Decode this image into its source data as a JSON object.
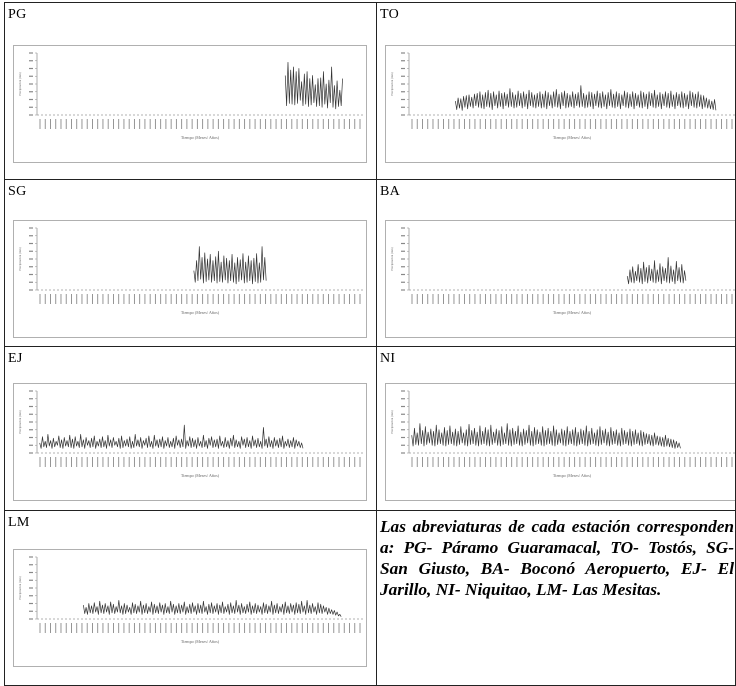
{
  "note": "Las abreviaturas de cada estación corresponden a: PG- Páramo Guaramacal, TO- Tostós, SG- San Giusto, BA- Boconó Aeropuerto, EJ- El Jarillo,  NI- Niquitao, LM- Las Mesitas.",
  "colors": {
    "series": "#333333",
    "border": "#222222",
    "axis": "#9a9a9a"
  },
  "chart_data": [
    {
      "type": "line",
      "title": "PG",
      "xlabel": "Tiempo (Meses/ Años)",
      "ylabel": "Precipitación (mm)",
      "n_points": 240,
      "ylim": [
        0,
        800
      ],
      "start_index": 182,
      "n_active": 43,
      "values": [
        510,
        120,
        680,
        150,
        580,
        140,
        620,
        130,
        560,
        150,
        600,
        190,
        430,
        120,
        530,
        140,
        560,
        110,
        470,
        130,
        510,
        160,
        390,
        110,
        470,
        120,
        480,
        100,
        560,
        140,
        400,
        90,
        450,
        160,
        620,
        100,
        380,
        80,
        440,
        110,
        320,
        120,
        470
      ]
    },
    {
      "type": "line",
      "title": "TO",
      "xlabel": "Tiempo (Meses/ Años)",
      "ylabel": "Precipitación (mm)",
      "n_points": 240,
      "ylim": [
        0,
        800
      ],
      "start_index": 34,
      "n_active": 196,
      "values": [
        180,
        70,
        220,
        90,
        210,
        60,
        240,
        100,
        250,
        80,
        260,
        110,
        230,
        90,
        270,
        120,
        280,
        100,
        300,
        90,
        260,
        80,
        290,
        110,
        320,
        100,
        280,
        70,
        300,
        120,
        260,
        90,
        310,
        110,
        280,
        80,
        290,
        120,
        270,
        100,
        340,
        110,
        290,
        90,
        260,
        100,
        310,
        120,
        280,
        90,
        300,
        110,
        270,
        80,
        320,
        120,
        290,
        100,
        260,
        90,
        280,
        110,
        300,
        90,
        270,
        100,
        310,
        80,
        290,
        120,
        260,
        90,
        300,
        110,
        330,
        100,
        270,
        80,
        290,
        120,
        310,
        90,
        280,
        100,
        260,
        110,
        300,
        90,
        270,
        120,
        290,
        100,
        380,
        110,
        280,
        90,
        260,
        100,
        300,
        110,
        290,
        80,
        270,
        120,
        310,
        100,
        280,
        90,
        300,
        110,
        260,
        80,
        290,
        120,
        330,
        100,
        270,
        90,
        300,
        110,
        280,
        80,
        260,
        120,
        310,
        100,
        290,
        90,
        270,
        110,
        300,
        80,
        280,
        120,
        260,
        100,
        310,
        90,
        290,
        110,
        270,
        80,
        300,
        120,
        280,
        100,
        320,
        90,
        260,
        110,
        290,
        80,
        270,
        120,
        300,
        100,
        280,
        90,
        310,
        110,
        260,
        80,
        290,
        120,
        270,
        100,
        300,
        90,
        280,
        110,
        260,
        80,
        310,
        120,
        290,
        100,
        270,
        90,
        300,
        110,
        260,
        80,
        250,
        100,
        220,
        90,
        200,
        80,
        180,
        70,
        200,
        60
      ]
    },
    {
      "type": "line",
      "title": "SG",
      "xlabel": "Tiempo (Meses/ Años)",
      "ylabel": "Precipitación (mm)",
      "n_points": 240,
      "ylim": [
        0,
        800
      ],
      "start_index": 115,
      "n_active": 54,
      "values": [
        250,
        100,
        380,
        120,
        560,
        140,
        420,
        90,
        480,
        110,
        400,
        130,
        460,
        100,
        380,
        120,
        430,
        90,
        500,
        110,
        360,
        100,
        440,
        130,
        410,
        90,
        380,
        120,
        460,
        100,
        350,
        80,
        420,
        110,
        390,
        130,
        470,
        90,
        360,
        100,
        440,
        120,
        380,
        80,
        410,
        110,
        470,
        90,
        350,
        100,
        560,
        130,
        420,
        120
      ]
    },
    {
      "type": "line",
      "title": "BA",
      "xlabel": "Tiempo (Meses/ Años)",
      "ylabel": "Precipitación (mm)",
      "n_points": 240,
      "ylim": [
        0,
        800
      ],
      "start_index": 160,
      "n_active": 44,
      "values": [
        180,
        80,
        260,
        100,
        300,
        90,
        240,
        120,
        330,
        100,
        280,
        80,
        360,
        110,
        290,
        90,
        320,
        120,
        270,
        100,
        380,
        90,
        260,
        110,
        340,
        80,
        300,
        120,
        280,
        100,
        420,
        90,
        310,
        110,
        260,
        80,
        370,
        120,
        290,
        100,
        330,
        90,
        250,
        120
      ]
    },
    {
      "type": "line",
      "title": "EJ",
      "xlabel": "Tiempo (Meses/ Años)",
      "ylabel": "Precipitación (mm)",
      "n_points": 240,
      "ylim": [
        0,
        800
      ],
      "start_index": 2,
      "n_active": 196,
      "values": [
        130,
        60,
        210,
        80,
        150,
        70,
        240,
        90,
        160,
        60,
        190,
        80,
        150,
        100,
        220,
        70,
        170,
        60,
        200,
        90,
        160,
        80,
        230,
        70,
        180,
        60,
        210,
        90,
        150,
        70,
        240,
        80,
        170,
        60,
        200,
        100,
        160,
        70,
        190,
        80,
        220,
        60,
        150,
        90,
        180,
        70,
        210,
        80,
        160,
        60,
        230,
        90,
        170,
        70,
        200,
        100,
        150,
        80,
        190,
        60,
        220,
        70,
        160,
        90,
        180,
        80,
        210,
        60,
        150,
        70,
        240,
        90,
        170,
        80,
        200,
        60,
        160,
        100,
        190,
        70,
        220,
        80,
        150,
        60,
        230,
        90,
        170,
        70,
        180,
        80,
        210,
        60,
        160,
        90,
        200,
        70,
        150,
        80,
        190,
        60,
        220,
        100,
        170,
        70,
        180,
        80,
        360,
        60,
        160,
        90,
        210,
        70,
        190,
        80,
        170,
        60,
        200,
        90,
        150,
        70,
        230,
        80,
        160,
        60,
        190,
        100,
        210,
        70,
        170,
        80,
        180,
        60,
        220,
        90,
        150,
        70,
        200,
        80,
        160,
        60,
        190,
        90,
        230,
        70,
        170,
        80,
        150,
        60,
        210,
        100,
        180,
        70,
        200,
        80,
        160,
        60,
        220,
        90,
        170,
        70,
        190,
        80,
        150,
        60,
        330,
        90,
        180,
        70,
        210,
        80,
        160,
        60,
        200,
        90,
        170,
        70,
        190,
        80,
        220,
        60,
        150,
        90,
        180,
        70,
        160,
        80,
        200,
        60,
        170,
        90,
        150,
        70,
        130,
        60
      ]
    },
    {
      "type": "line",
      "title": "NI",
      "xlabel": "Tiempo (Meses/ Años)",
      "ylabel": "Precipitación (mm)",
      "n_points": 240,
      "ylim": [
        0,
        800
      ],
      "start_index": 2,
      "n_active": 200,
      "values": [
        230,
        90,
        320,
        110,
        260,
        100,
        380,
        120,
        290,
        90,
        340,
        110,
        270,
        130,
        310,
        100,
        280,
        90,
        360,
        110,
        300,
        120,
        260,
        100,
        330,
        90,
        290,
        110,
        350,
        120,
        270,
        100,
        310,
        90,
        280,
        110,
        340,
        130,
        260,
        100,
        300,
        90,
        370,
        110,
        290,
        120,
        320,
        100,
        270,
        90,
        350,
        110,
        280,
        120,
        330,
        100,
        300,
        90,
        360,
        110,
        270,
        130,
        310,
        100,
        290,
        90,
        340,
        110,
        260,
        120,
        380,
        100,
        300,
        90,
        320,
        110,
        280,
        120,
        350,
        100,
        270,
        90,
        310,
        110,
        290,
        130,
        360,
        100,
        280,
        90,
        330,
        110,
        300,
        120,
        270,
        100,
        340,
        90,
        290,
        110,
        320,
        120,
        280,
        100,
        350,
        90,
        300,
        110,
        260,
        130,
        310,
        100,
        290,
        90,
        340,
        110,
        280,
        120,
        300,
        100,
        330,
        90,
        270,
        110,
        310,
        120,
        290,
        100,
        350,
        90,
        280,
        110,
        320,
        120,
        260,
        100,
        300,
        90,
        340,
        110,
        290,
        130,
        310,
        100,
        270,
        90,
        330,
        110,
        280,
        120,
        300,
        100,
        260,
        90,
        320,
        110,
        290,
        120,
        270,
        100,
        310,
        90,
        280,
        110,
        300,
        120,
        260,
        100,
        290,
        90,
        270,
        110,
        250,
        120,
        240,
        100,
        230,
        90,
        260,
        110,
        220,
        100,
        210,
        90,
        200,
        80,
        230,
        90,
        190,
        80,
        180,
        70,
        170,
        60,
        150,
        70,
        130,
        60
      ]
    },
    {
      "type": "line",
      "title": "LM",
      "xlabel": "Tiempo (Meses/ Años)",
      "ylabel": "Precipitación (mm)",
      "n_points": 240,
      "ylim": [
        0,
        800
      ],
      "start_index": 34,
      "n_active": 184,
      "values": [
        180,
        70,
        150,
        60,
        200,
        80,
        170,
        70,
        210,
        90,
        160,
        60,
        230,
        80,
        180,
        70,
        200,
        90,
        170,
        60,
        220,
        80,
        190,
        70,
        160,
        90,
        240,
        80,
        170,
        60,
        200,
        70,
        180,
        90,
        150,
        60,
        210,
        80,
        190,
        70,
        170,
        90,
        230,
        60,
        180,
        80,
        200,
        70,
        160,
        90,
        220,
        60,
        190,
        80,
        170,
        70,
        210,
        90,
        180,
        60,
        200,
        80,
        160,
        70,
        230,
        90,
        190,
        60,
        170,
        80,
        200,
        70,
        180,
        90,
        220,
        60,
        160,
        80,
        190,
        70,
        210,
        90,
        170,
        60,
        200,
        80,
        180,
        70,
        230,
        90,
        160,
        60,
        190,
        80,
        210,
        70,
        170,
        90,
        200,
        60,
        180,
        80,
        220,
        70,
        160,
        90,
        190,
        60,
        210,
        80,
        170,
        70,
        240,
        90,
        180,
        60,
        200,
        80,
        160,
        70,
        190,
        90,
        220,
        60,
        170,
        80,
        200,
        70,
        180,
        90,
        160,
        60,
        210,
        80,
        190,
        70,
        170,
        90,
        230,
        60,
        180,
        80,
        200,
        70,
        160,
        90,
        190,
        60,
        220,
        80,
        170,
        70,
        200,
        90,
        180,
        60,
        210,
        80,
        190,
        70,
        230,
        90,
        170,
        60,
        240,
        80,
        180,
        70,
        200,
        90,
        160,
        60,
        210,
        80,
        190,
        70,
        170,
        90,
        150,
        60,
        140,
        70,
        120,
        60,
        110,
        50,
        90,
        40,
        60,
        30
      ]
    }
  ]
}
